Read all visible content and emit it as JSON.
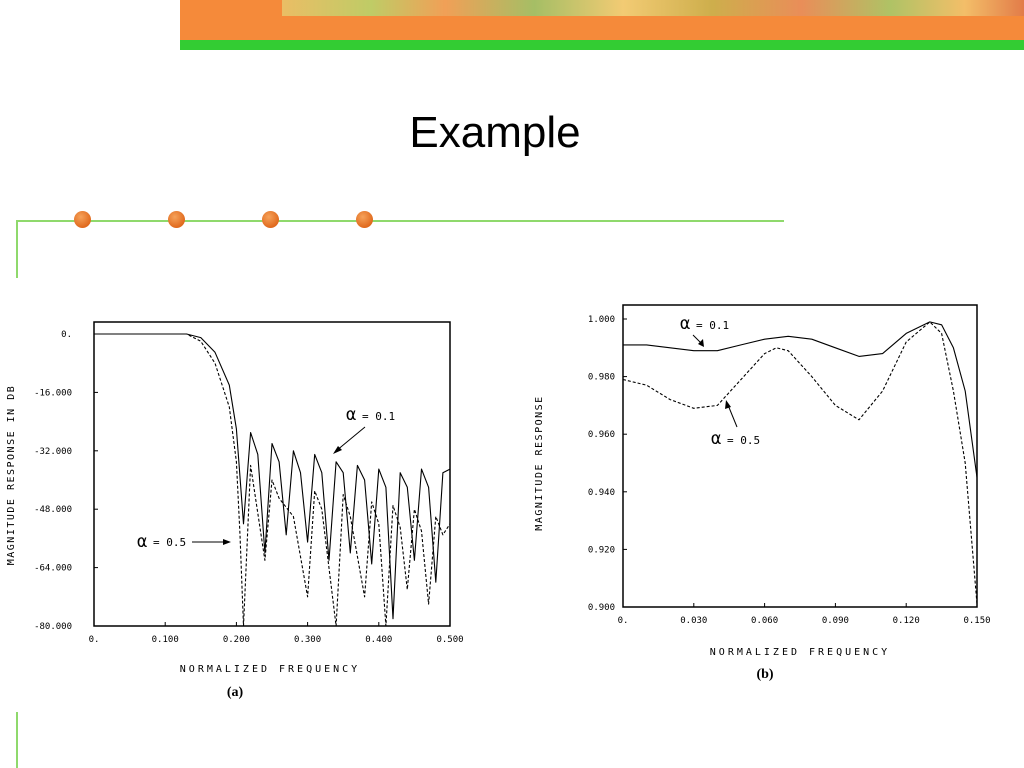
{
  "slide": {
    "title": "Example"
  },
  "colors": {
    "banner_orange": "#f58a3a",
    "banner_green": "#33cc33",
    "accent_dot": "#e8782a",
    "deco_line": "#8fd96c"
  },
  "chart_data": [
    {
      "type": "line",
      "caption": "(a)",
      "xlabel": "NORMALIZED FREQUENCY",
      "ylabel": "MAGNITUDE RESPONSE IN DB",
      "xlim": [
        0,
        0.5
      ],
      "ylim": [
        -80,
        0
      ],
      "xticks": [
        "0.",
        "0.100",
        "0.200",
        "0.300",
        "0.400",
        "0.500"
      ],
      "yticks": [
        "0.",
        "-16.000",
        "-32.000",
        "-48.000",
        "-64.000",
        "-80.000"
      ],
      "annotations": [
        {
          "alpha_symbol": "α",
          "text": "= 0.1"
        },
        {
          "alpha_symbol": "α",
          "text": "= 0.5"
        }
      ],
      "series": [
        {
          "name": "α = 0.1",
          "style": "solid",
          "x": [
            0,
            0.13,
            0.15,
            0.17,
            0.19,
            0.2,
            0.21,
            0.22,
            0.23,
            0.24,
            0.25,
            0.26,
            0.27,
            0.28,
            0.29,
            0.3,
            0.31,
            0.32,
            0.33,
            0.34,
            0.35,
            0.36,
            0.37,
            0.38,
            0.39,
            0.4,
            0.41,
            0.42,
            0.43,
            0.44,
            0.45,
            0.46,
            0.47,
            0.48,
            0.49,
            0.5
          ],
          "y": [
            0,
            0,
            -1,
            -5,
            -14,
            -26,
            -52,
            -27,
            -33,
            -60,
            -30,
            -35,
            -55,
            -32,
            -38,
            -57,
            -33,
            -38,
            -62,
            -35,
            -38,
            -60,
            -36,
            -40,
            -63,
            -37,
            -42,
            -78,
            -38,
            -42,
            -62,
            -37,
            -42,
            -68,
            -38,
            -37
          ]
        },
        {
          "name": "α = 0.5",
          "style": "dashed",
          "x": [
            0,
            0.13,
            0.15,
            0.17,
            0.19,
            0.2,
            0.205,
            0.21,
            0.22,
            0.24,
            0.25,
            0.26,
            0.28,
            0.3,
            0.31,
            0.32,
            0.34,
            0.35,
            0.36,
            0.38,
            0.39,
            0.4,
            0.41,
            0.42,
            0.43,
            0.44,
            0.45,
            0.46,
            0.47,
            0.48,
            0.49,
            0.5
          ],
          "y": [
            0,
            0,
            -2,
            -8,
            -20,
            -35,
            -55,
            -80,
            -36,
            -62,
            -40,
            -45,
            -50,
            -72,
            -43,
            -48,
            -80,
            -44,
            -50,
            -72,
            -46,
            -52,
            -80,
            -47,
            -53,
            -70,
            -48,
            -54,
            -74,
            -50,
            -55,
            -52
          ]
        }
      ]
    },
    {
      "type": "line",
      "caption": "(b)",
      "xlabel": "NORMALIZED FREQUENCY",
      "ylabel": "MAGNITUDE RESPONSE",
      "xlim": [
        0,
        0.15
      ],
      "ylim": [
        0.9,
        1.0
      ],
      "xticks": [
        "0.",
        "0.030",
        "0.060",
        "0.090",
        "0.120",
        "0.150"
      ],
      "yticks": [
        "1.000",
        "0.980",
        "0.960",
        "0.940",
        "0.920",
        "0.900"
      ],
      "annotations": [
        {
          "alpha_symbol": "α",
          "text": "= 0.1"
        },
        {
          "alpha_symbol": "α",
          "text": "= 0.5"
        }
      ],
      "series": [
        {
          "name": "α = 0.1",
          "style": "solid",
          "x": [
            0,
            0.01,
            0.02,
            0.03,
            0.04,
            0.05,
            0.06,
            0.07,
            0.08,
            0.09,
            0.1,
            0.11,
            0.12,
            0.13,
            0.135,
            0.14,
            0.145,
            0.15
          ],
          "y": [
            0.991,
            0.991,
            0.99,
            0.989,
            0.989,
            0.991,
            0.993,
            0.994,
            0.993,
            0.99,
            0.987,
            0.988,
            0.995,
            0.999,
            0.998,
            0.99,
            0.975,
            0.945
          ]
        },
        {
          "name": "α = 0.5",
          "style": "dashed",
          "x": [
            0,
            0.01,
            0.02,
            0.03,
            0.04,
            0.05,
            0.06,
            0.065,
            0.07,
            0.08,
            0.09,
            0.1,
            0.11,
            0.12,
            0.13,
            0.135,
            0.14,
            0.145,
            0.15
          ],
          "y": [
            0.979,
            0.977,
            0.972,
            0.969,
            0.97,
            0.979,
            0.988,
            0.99,
            0.989,
            0.98,
            0.97,
            0.965,
            0.975,
            0.992,
            0.999,
            0.995,
            0.975,
            0.95,
            0.901
          ]
        }
      ]
    }
  ]
}
